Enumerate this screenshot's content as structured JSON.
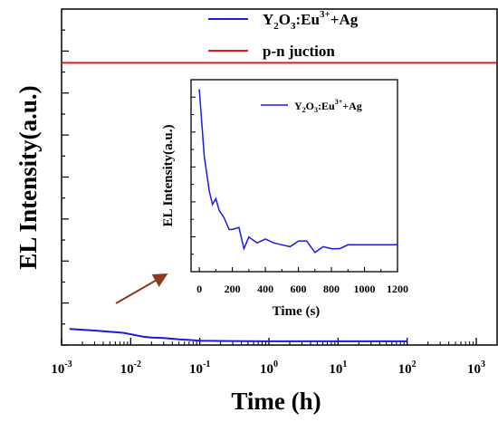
{
  "chart_data": [
    {
      "type": "line",
      "xscale": "log",
      "xlabel": "Time (h)",
      "ylabel": "EL Intensity(a.u.)",
      "xlim": [
        0.001,
        2000
      ],
      "ylim": [
        0,
        100
      ],
      "x_ticks": [
        {
          "value": 0.001,
          "base": "10",
          "exp": "-3"
        },
        {
          "value": 0.01,
          "base": "10",
          "exp": "-2"
        },
        {
          "value": 0.1,
          "base": "10",
          "exp": "-1"
        },
        {
          "value": 1,
          "base": "10",
          "exp": "0"
        },
        {
          "value": 10,
          "base": "10",
          "exp": "1"
        },
        {
          "value": 100,
          "base": "10",
          "exp": "2"
        },
        {
          "value": 1000,
          "base": "10",
          "exp": "3"
        }
      ],
      "legend": {
        "placement": "top-right",
        "entries": [
          {
            "base": "Y",
            "sub1": "2",
            "mid": "O",
            "sub2": "3",
            "mid2": ":Eu",
            "sup": "3+",
            "tail": "+Ag",
            "color": "#1a1ae6"
          },
          {
            "label": "p-n juction",
            "color": "#e61a1a"
          }
        ]
      },
      "series": [
        {
          "name": "Y2O3:Eu3++Ag",
          "color": "#1a1ae6",
          "x": [
            0.0013,
            0.003,
            0.008,
            0.015,
            0.02,
            0.03,
            0.05,
            0.07,
            0.1,
            0.15,
            0.2,
            0.5,
            1,
            5,
            10,
            50,
            100
          ],
          "y": [
            4.8,
            4.3,
            3.6,
            2.5,
            2.2,
            2.1,
            1.7,
            1.5,
            1.3,
            1.25,
            1.2,
            1.15,
            1.1,
            1.1,
            1.1,
            1.1,
            1.1
          ]
        },
        {
          "name": "p-n juction",
          "color": "#e61a1a",
          "x": [
            0.001,
            2000
          ],
          "y": [
            84,
            84
          ]
        }
      ]
    },
    {
      "type": "line",
      "xlabel": "Time (s)",
      "ylabel": "EL Intensity(a.u.)",
      "xlim": [
        -50,
        1200
      ],
      "ylim": [
        0,
        100
      ],
      "x_ticks": [
        0,
        200,
        400,
        600,
        800,
        1000,
        1200
      ],
      "legend": {
        "placement": "top-right",
        "entries": [
          {
            "base": "Y",
            "sub1": "2",
            "mid": "O",
            "sub2": "3",
            "mid2": ":Eu",
            "sup": "3+",
            "tail": "+Ag",
            "color": "#1a1ae6"
          }
        ]
      },
      "series": [
        {
          "name": "Y2O3:Eu3++Ag",
          "color": "#1a1ae6",
          "x": [
            0,
            30,
            60,
            80,
            100,
            120,
            150,
            180,
            200,
            240,
            270,
            300,
            350,
            400,
            450,
            500,
            550,
            600,
            650,
            700,
            750,
            800,
            850,
            900,
            950,
            1000,
            1100,
            1200
          ],
          "y": [
            95,
            60,
            42,
            35,
            38,
            32,
            28,
            22,
            22,
            23,
            12,
            18,
            15,
            17,
            15,
            14,
            13,
            16,
            16,
            10,
            13,
            12,
            12,
            14,
            14,
            14,
            14,
            14
          ]
        }
      ]
    }
  ]
}
